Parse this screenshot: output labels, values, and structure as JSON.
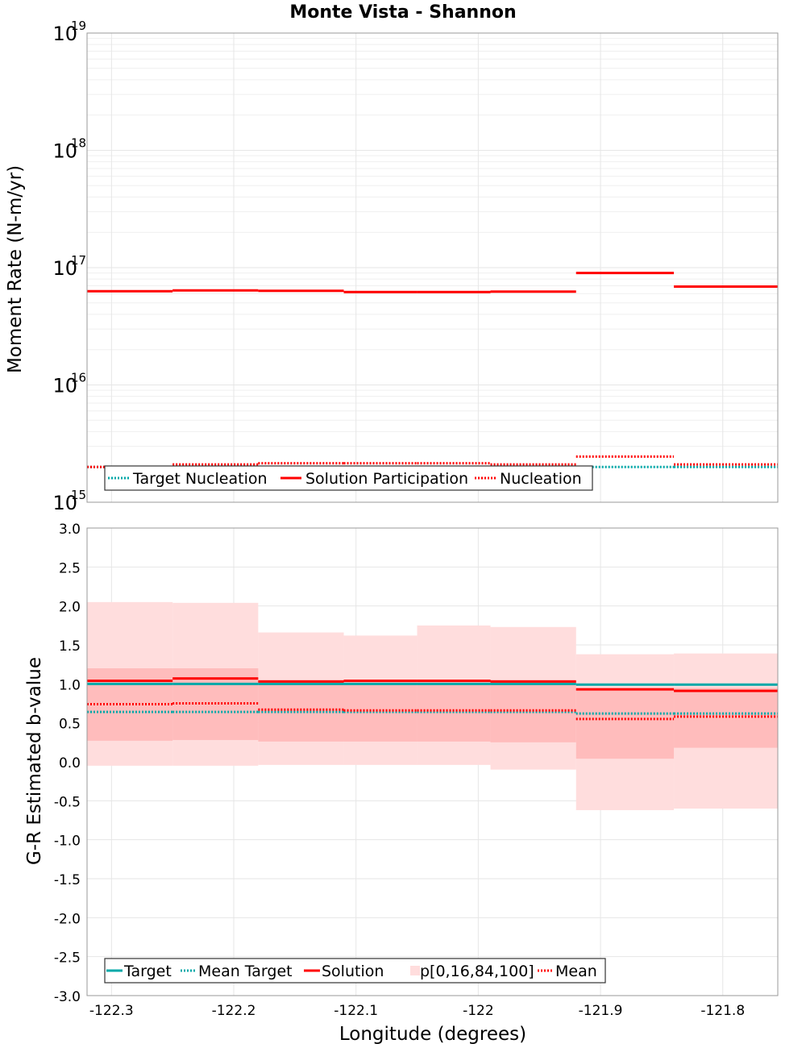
{
  "chart_data": [
    {
      "type": "line",
      "drawstyle": "steps",
      "title": "Monte Vista - Shannon",
      "xlabel": "Longitude (degrees)",
      "ylabel": "Moment Rate (N-m/yr)",
      "yscale": "log",
      "xlim": [
        -122.32,
        -121.755
      ],
      "ylim": [
        1000000000000000.0,
        1e+19
      ],
      "x_ticks": [
        -122.3,
        -122.2,
        -122.1,
        -122.0,
        -121.9,
        -121.8
      ],
      "x_tick_labels": [
        "-122.3",
        "-122.2",
        "-122.1",
        "-122",
        "-121.9",
        "-121.8"
      ],
      "y_ticks": [
        {
          "base": "10",
          "exp": "15",
          "value": 1000000000000000.0
        },
        {
          "base": "10",
          "exp": "16",
          "value": 1e+16
        },
        {
          "base": "10",
          "exp": "17",
          "value": 1e+17
        },
        {
          "base": "10",
          "exp": "18",
          "value": 1e+18
        },
        {
          "base": "10",
          "exp": "19",
          "value": 1e+19
        }
      ],
      "bin_edges": [
        -122.32,
        -122.25,
        -122.18,
        -122.11,
        -122.05,
        -121.99,
        -121.92,
        -121.84,
        -121.755
      ],
      "series": [
        {
          "name": "Target Nucleation",
          "color": "#00a8a8",
          "style": "dotted",
          "values": [
            2000000000000000.0,
            2000000000000000.0,
            2000000000000000.0,
            2000000000000000.0,
            2000000000000000.0,
            2000000000000000.0,
            2000000000000000.0,
            2000000000000000.0
          ]
        },
        {
          "name": "Solution Participation",
          "color": "#ff0000",
          "style": "solid",
          "values": [
            6.3e+16,
            6.4e+16,
            6.35e+16,
            6.2e+16,
            6.2e+16,
            6.25e+16,
            9e+16,
            6.9e+16
          ]
        },
        {
          "name": "Nucleation",
          "color": "#ff0000",
          "style": "dotted",
          "values": [
            2000000000000000.0,
            2100000000000000.0,
            2150000000000000.0,
            2150000000000000.0,
            2150000000000000.0,
            2100000000000000.0,
            2450000000000000.0,
            2100000000000000.0
          ]
        }
      ],
      "legend": {
        "position": "bottom-left",
        "entries": [
          {
            "label": "Target Nucleation",
            "color": "#00a8a8",
            "style": "dotted"
          },
          {
            "label": "Solution Participation",
            "color": "#ff0000",
            "style": "solid"
          },
          {
            "label": "Nucleation",
            "color": "#ff0000",
            "style": "dotted"
          }
        ]
      }
    },
    {
      "type": "line",
      "drawstyle": "steps",
      "xlabel": "Longitude (degrees)",
      "ylabel": "G-R Estimated b-value",
      "xlim": [
        -122.32,
        -121.755
      ],
      "ylim": [
        -3.0,
        3.0
      ],
      "y_ticks": [
        -3.0,
        -2.5,
        -2.0,
        -1.5,
        -1.0,
        -0.5,
        0.0,
        0.5,
        1.0,
        1.5,
        2.0,
        2.5,
        3.0
      ],
      "y_tick_labels": [
        "-3.0",
        "-2.5",
        "-2.0",
        "-1.5",
        "-1.0",
        "-0.5",
        "0.0",
        "0.5",
        "1.0",
        "1.5",
        "2.0",
        "2.5",
        "3.0"
      ],
      "bin_edges": [
        -122.32,
        -122.25,
        -122.18,
        -122.11,
        -122.05,
        -121.99,
        -121.92,
        -121.84,
        -121.755
      ],
      "bands": {
        "name": "p[0,16,84,100]",
        "outer_color": "#ffdddd",
        "inner_color": "#ffbcbc",
        "p0": [
          -0.05,
          -0.05,
          -0.04,
          -0.04,
          -0.04,
          -0.1,
          -0.62,
          -0.6
        ],
        "p16": [
          0.27,
          0.28,
          0.26,
          0.26,
          0.26,
          0.25,
          0.04,
          0.18
        ],
        "p84": [
          1.2,
          1.2,
          1.05,
          1.05,
          1.05,
          1.05,
          0.95,
          0.95
        ],
        "p100": [
          2.05,
          2.04,
          1.66,
          1.62,
          1.75,
          1.73,
          1.38,
          1.39
        ]
      },
      "series": [
        {
          "name": "Target",
          "color": "#00a8a8",
          "style": "solid",
          "values": [
            1.0,
            1.0,
            1.0,
            1.0,
            1.0,
            1.0,
            0.99,
            0.99
          ]
        },
        {
          "name": "Mean Target",
          "color": "#00a8a8",
          "style": "dotted",
          "values": [
            0.64,
            0.64,
            0.64,
            0.64,
            0.64,
            0.64,
            0.62,
            0.62
          ]
        },
        {
          "name": "Solution",
          "color": "#ff0000",
          "style": "solid",
          "values": [
            1.04,
            1.07,
            1.03,
            1.04,
            1.04,
            1.03,
            0.93,
            0.91
          ]
        },
        {
          "name": "Mean",
          "color": "#ff0000",
          "style": "dotted",
          "values": [
            0.74,
            0.75,
            0.67,
            0.66,
            0.66,
            0.66,
            0.55,
            0.58
          ]
        }
      ],
      "legend": {
        "position": "bottom-left",
        "entries": [
          {
            "label": "Target",
            "color": "#00a8a8",
            "style": "solid"
          },
          {
            "label": "Mean Target",
            "color": "#00a8a8",
            "style": "dotted"
          },
          {
            "label": "Solution",
            "color": "#ff0000",
            "style": "solid"
          },
          {
            "label": "p[0,16,84,100]",
            "color": "#ffdddd",
            "style": "patch"
          },
          {
            "label": "Mean",
            "color": "#ff0000",
            "style": "dotted"
          }
        ]
      }
    }
  ]
}
